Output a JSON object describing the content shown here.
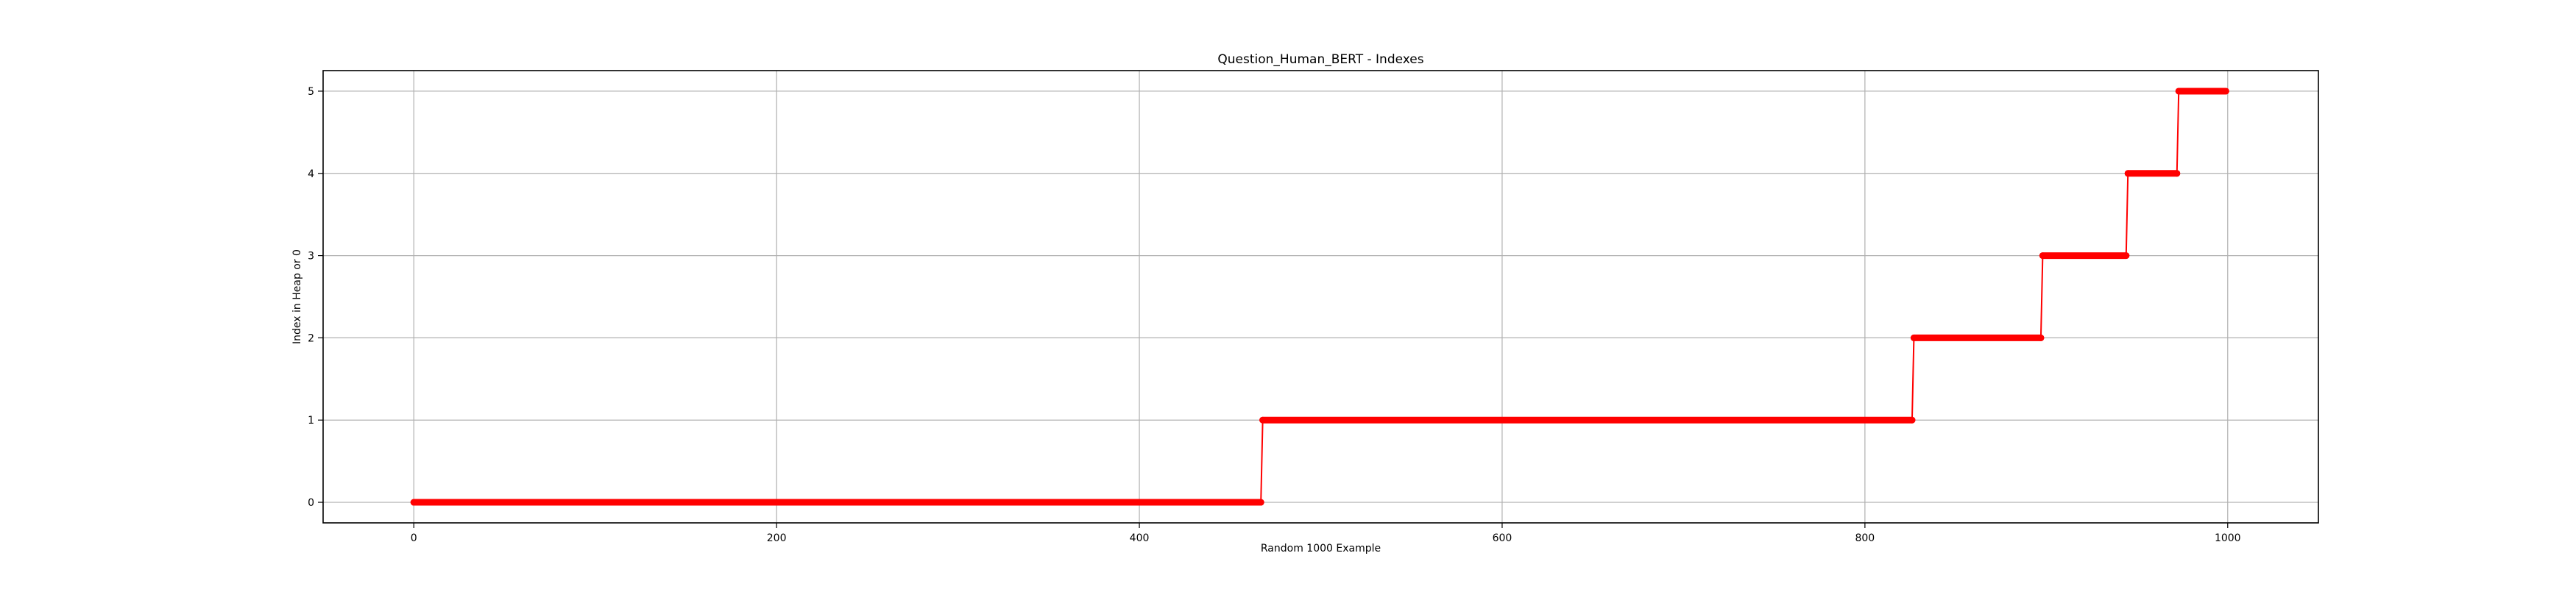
{
  "chart_data": {
    "type": "line",
    "title": "Question_Human_BERT - Indexes",
    "xlabel": "Random 1000 Example",
    "ylabel": "Index in Heap or 0",
    "xlim": [
      -50,
      1050
    ],
    "ylim": [
      -0.25,
      5.25
    ],
    "xticks": [
      0,
      200,
      400,
      600,
      800,
      1000
    ],
    "yticks": [
      0,
      1,
      2,
      3,
      4,
      5
    ],
    "grid": true,
    "line_color": "#ff0000",
    "marker": "circle",
    "steps": [
      {
        "x_start": 0,
        "x_end": 467,
        "y": 0
      },
      {
        "x_start": 468,
        "x_end": 826,
        "y": 1
      },
      {
        "x_start": 827,
        "x_end": 897,
        "y": 2
      },
      {
        "x_start": 898,
        "x_end": 944,
        "y": 3
      },
      {
        "x_start": 945,
        "x_end": 972,
        "y": 4
      },
      {
        "x_start": 973,
        "x_end": 999,
        "y": 5
      }
    ]
  }
}
